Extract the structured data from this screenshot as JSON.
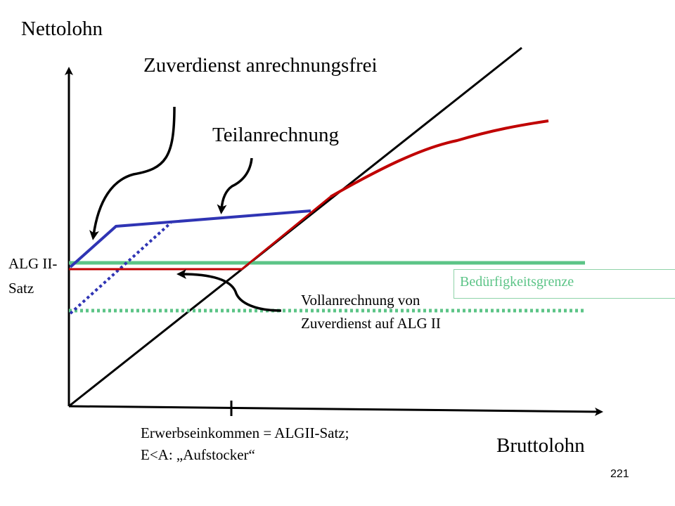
{
  "labels": {
    "y_axis": "Nettolohn",
    "x_axis": "Bruttolohn",
    "zuverdienst": "Zuverdienst  anrechnungsfrei",
    "teilanrechnung": "Teilanrechnung",
    "alg_line1": "ALG II-",
    "alg_line2": "Satz",
    "voll_line1": "Vollanrechnung von",
    "voll_line2": "Zuverdienst auf ALG II",
    "erwerb_line1": "Erwerbseinkommen = ALGII-Satz;",
    "erwerb_line2": "E<A: „Aufstocker“",
    "beduerftigkeit": "Bedürfigkeitsgrenze",
    "page_number": "221"
  },
  "colors": {
    "axis": "#000000",
    "blue": "#2f34b4",
    "red": "#c00000",
    "green": "#5cc487",
    "box_border": "#8fd3a8"
  }
}
